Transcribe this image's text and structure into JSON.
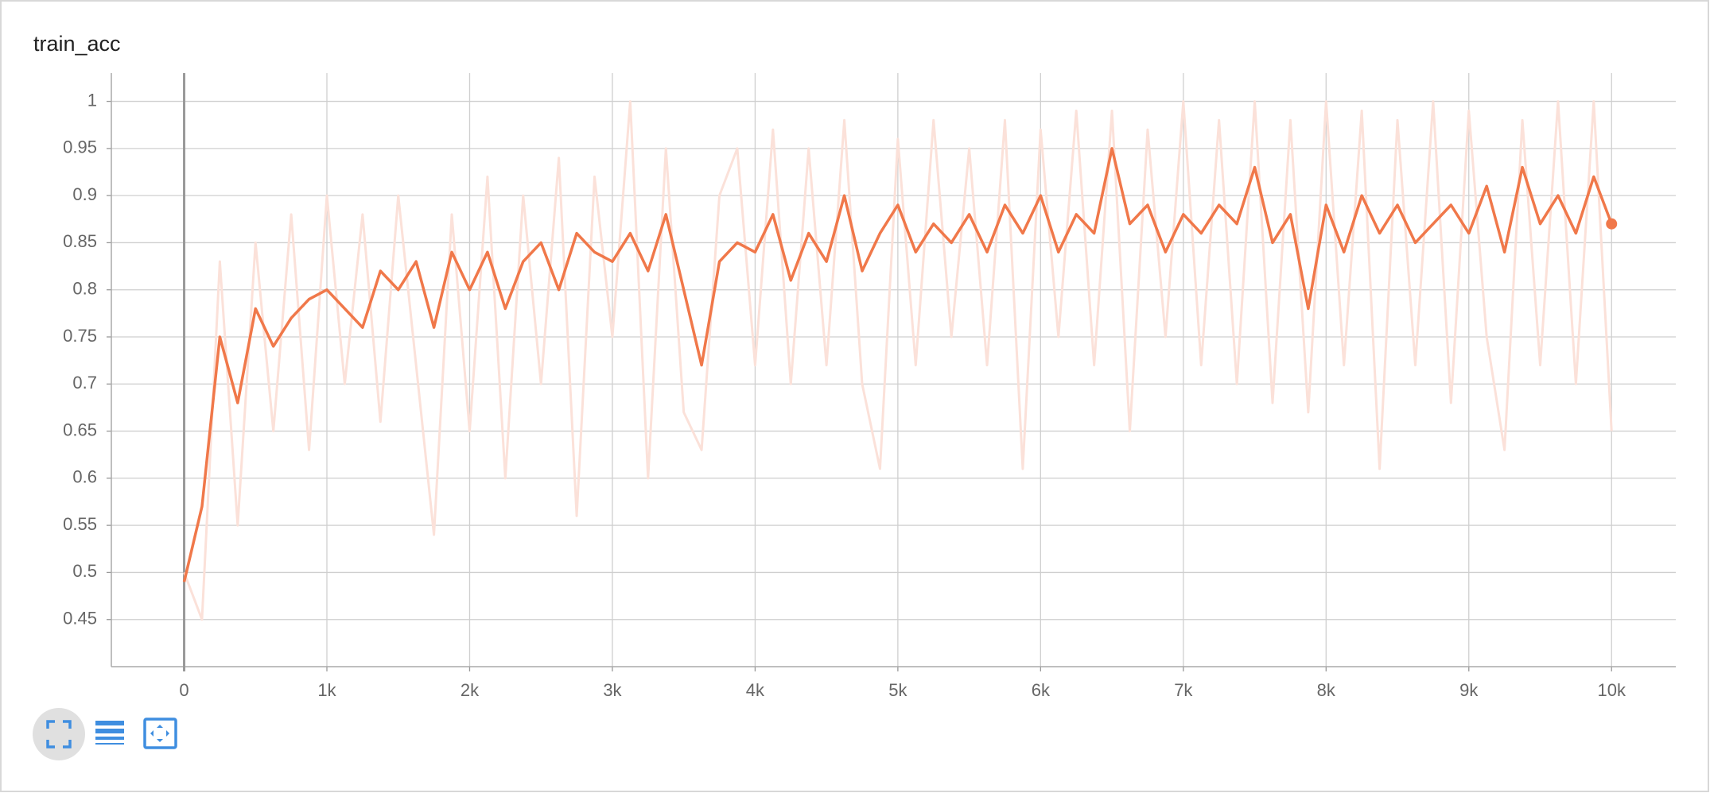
{
  "chart_data": {
    "type": "line",
    "title": "train_acc",
    "x": [
      0,
      125,
      250,
      375,
      500,
      625,
      750,
      875,
      1000,
      1125,
      1250,
      1375,
      1500,
      1625,
      1750,
      1875,
      2000,
      2125,
      2250,
      2375,
      2500,
      2625,
      2750,
      2875,
      3000,
      3125,
      3250,
      3375,
      3500,
      3625,
      3750,
      3875,
      4000,
      4125,
      4250,
      4375,
      4500,
      4625,
      4750,
      4875,
      5000,
      5125,
      5250,
      5375,
      5500,
      5625,
      5750,
      5875,
      6000,
      6125,
      6250,
      6375,
      6500,
      6625,
      6750,
      6875,
      7000,
      7125,
      7250,
      7375,
      7500,
      7625,
      7750,
      7875,
      8000,
      8125,
      8250,
      8375,
      8500,
      8625,
      8750,
      8875,
      9000,
      9125,
      9250,
      9375,
      9500,
      9625,
      9750,
      9875,
      10000
    ],
    "series": [
      {
        "color": "#fbe1d9",
        "values": [
          0.5,
          0.45,
          0.83,
          0.55,
          0.85,
          0.65,
          0.88,
          0.63,
          0.9,
          0.7,
          0.88,
          0.66,
          0.9,
          0.72,
          0.54,
          0.88,
          0.65,
          0.92,
          0.6,
          0.9,
          0.7,
          0.94,
          0.56,
          0.92,
          0.75,
          1.0,
          0.6,
          0.95,
          0.67,
          0.63,
          0.9,
          0.95,
          0.72,
          0.97,
          0.7,
          0.95,
          0.72,
          0.98,
          0.7,
          0.61,
          0.96,
          0.72,
          0.98,
          0.75,
          0.95,
          0.72,
          0.98,
          0.61,
          0.97,
          0.75,
          0.99,
          0.72,
          0.99,
          0.65,
          0.97,
          0.75,
          1.0,
          0.72,
          0.98,
          0.7,
          1.0,
          0.68,
          0.98,
          0.67,
          1.0,
          0.72,
          0.99,
          0.61,
          0.98,
          0.72,
          1.0,
          0.68,
          0.99,
          0.75,
          0.63,
          0.98,
          0.72,
          1.0,
          0.7,
          1.0,
          0.65
        ]
      },
      {
        "color": "#f0784a",
        "values": [
          0.49,
          0.57,
          0.75,
          0.68,
          0.78,
          0.74,
          0.77,
          0.79,
          0.8,
          0.78,
          0.76,
          0.82,
          0.8,
          0.83,
          0.76,
          0.84,
          0.8,
          0.84,
          0.78,
          0.83,
          0.85,
          0.8,
          0.86,
          0.84,
          0.83,
          0.86,
          0.82,
          0.88,
          0.8,
          0.72,
          0.83,
          0.85,
          0.84,
          0.88,
          0.81,
          0.86,
          0.83,
          0.9,
          0.82,
          0.86,
          0.89,
          0.84,
          0.87,
          0.85,
          0.88,
          0.84,
          0.89,
          0.86,
          0.9,
          0.84,
          0.88,
          0.86,
          0.95,
          0.87,
          0.89,
          0.84,
          0.88,
          0.86,
          0.89,
          0.87,
          0.93,
          0.85,
          0.88,
          0.78,
          0.89,
          0.84,
          0.9,
          0.86,
          0.89,
          0.85,
          0.87,
          0.89,
          0.86,
          0.91,
          0.84,
          0.93,
          0.87,
          0.9,
          0.86,
          0.92,
          0.87
        ]
      }
    ],
    "xlim": [
      -510,
      10450
    ],
    "ylim": [
      0.4,
      1.03
    ],
    "xticks": [
      0,
      {
        "value": 1000,
        "label": "1k"
      },
      {
        "value": 2000,
        "label": "2k"
      },
      {
        "value": 3000,
        "label": "3k"
      },
      {
        "value": 4000,
        "label": "4k"
      },
      {
        "value": 5000,
        "label": "5k"
      },
      {
        "value": 6000,
        "label": "6k"
      },
      {
        "value": 7000,
        "label": "7k"
      },
      {
        "value": 8000,
        "label": "8k"
      },
      {
        "value": 9000,
        "label": "9k"
      },
      {
        "value": 10000,
        "label": "10k"
      }
    ],
    "yticks": [
      0.45,
      0.5,
      0.55,
      0.6,
      0.65,
      0.7,
      0.75,
      0.8,
      0.85,
      0.9,
      0.95,
      1
    ],
    "grid": true
  }
}
